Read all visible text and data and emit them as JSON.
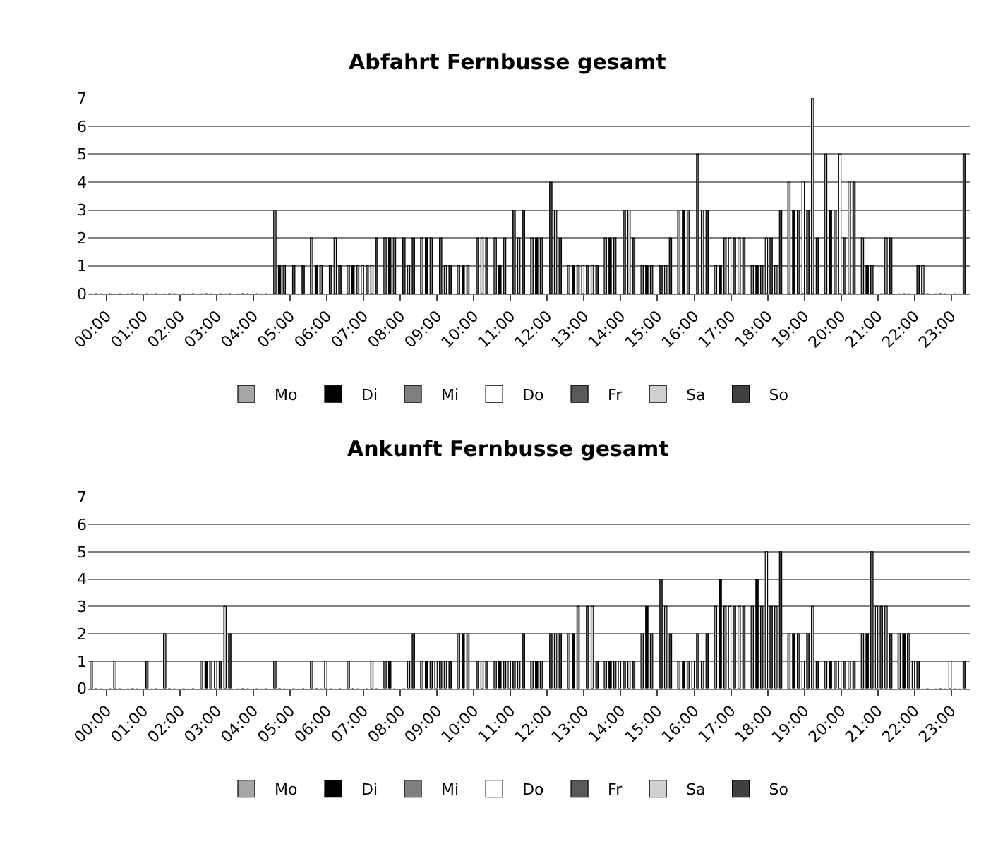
{
  "chart_data": [
    {
      "type": "bar",
      "title": "Abfahrt Fernbusse gesamt",
      "categories": [
        "00:00",
        "01:00",
        "02:00",
        "03:00",
        "04:00",
        "05:00",
        "06:00",
        "07:00",
        "08:00",
        "09:00",
        "10:00",
        "11:00",
        "12:00",
        "13:00",
        "14:00",
        "15:00",
        "16:00",
        "17:00",
        "18:00",
        "19:00",
        "20:00",
        "21:00",
        "22:00",
        "23:00"
      ],
      "series": [
        {
          "name": "Mo",
          "color": "#a6a6a6",
          "values": [
            0,
            0,
            0,
            0,
            0,
            3,
            2,
            1,
            2,
            2,
            1,
            2,
            2,
            1,
            2,
            1,
            3,
            1,
            1,
            4,
            5,
            2,
            0,
            0
          ]
        },
        {
          "name": "Di",
          "color": "#000000",
          "values": [
            0,
            0,
            0,
            0,
            0,
            1,
            1,
            1,
            2,
            2,
            1,
            1,
            2,
            1,
            2,
            1,
            3,
            1,
            1,
            3,
            3,
            1,
            0,
            0
          ]
        },
        {
          "name": "Mi",
          "color": "#7f7f7f",
          "values": [
            0,
            0,
            0,
            0,
            0,
            1,
            1,
            1,
            2,
            2,
            1,
            2,
            2,
            1,
            2,
            1,
            3,
            2,
            1,
            3,
            3,
            1,
            0,
            0
          ]
        },
        {
          "name": "Do",
          "color": "#ffffff",
          "values": [
            0,
            0,
            0,
            0,
            0,
            0,
            0,
            1,
            0,
            0,
            0,
            0,
            0,
            1,
            0,
            0,
            0,
            2,
            2,
            4,
            5,
            0,
            0,
            0
          ]
        },
        {
          "name": "Fr",
          "color": "#595959",
          "values": [
            0,
            0,
            0,
            0,
            0,
            1,
            1,
            1,
            2,
            2,
            2,
            3,
            4,
            1,
            3,
            1,
            5,
            2,
            2,
            3,
            2,
            0,
            1,
            0
          ]
        },
        {
          "name": "Sa",
          "color": "#d0d0d0",
          "values": [
            0,
            0,
            0,
            0,
            0,
            0,
            2,
            1,
            1,
            1,
            2,
            2,
            3,
            1,
            3,
            1,
            3,
            2,
            1,
            7,
            4,
            2,
            1,
            0
          ]
        },
        {
          "name": "So",
          "color": "#404040",
          "values": [
            0,
            0,
            0,
            0,
            0,
            1,
            1,
            2,
            2,
            1,
            2,
            3,
            2,
            1,
            2,
            2,
            3,
            2,
            3,
            2,
            4,
            2,
            0,
            5
          ]
        }
      ],
      "ylim": [
        0,
        7
      ],
      "yticks": [
        0,
        1,
        2,
        3,
        4,
        5,
        6,
        7
      ],
      "grid": "y",
      "legend": "bottom"
    },
    {
      "type": "bar",
      "title": "Ankunft Fernbusse gesamt",
      "categories": [
        "00:00",
        "01:00",
        "02:00",
        "03:00",
        "04:00",
        "05:00",
        "06:00",
        "07:00",
        "08:00",
        "09:00",
        "10:00",
        "11:00",
        "12:00",
        "13:00",
        "14:00",
        "15:00",
        "16:00",
        "17:00",
        "18:00",
        "19:00",
        "20:00",
        "21:00",
        "22:00",
        "23:00"
      ],
      "series": [
        {
          "name": "Mo",
          "color": "#a6a6a6",
          "values": [
            1,
            0,
            2,
            1,
            0,
            1,
            1,
            1,
            1,
            1,
            2,
            1,
            1,
            2,
            1,
            2,
            1,
            3,
            3,
            2,
            1,
            2,
            2,
            0
          ]
        },
        {
          "name": "Di",
          "color": "#000000",
          "values": [
            0,
            0,
            0,
            1,
            0,
            0,
            0,
            0,
            1,
            1,
            2,
            1,
            1,
            2,
            1,
            3,
            1,
            4,
            4,
            2,
            1,
            2,
            2,
            0
          ]
        },
        {
          "name": "Mi",
          "color": "#7f7f7f",
          "values": [
            0,
            0,
            0,
            1,
            0,
            0,
            0,
            0,
            0,
            1,
            2,
            1,
            1,
            3,
            1,
            2,
            1,
            3,
            3,
            2,
            1,
            5,
            2,
            0
          ]
        },
        {
          "name": "Do",
          "color": "#ffffff",
          "values": [
            0,
            0,
            0,
            1,
            0,
            0,
            1,
            0,
            0,
            1,
            0,
            1,
            0,
            0,
            1,
            0,
            1,
            3,
            5,
            1,
            1,
            3,
            1,
            1
          ]
        },
        {
          "name": "Fr",
          "color": "#595959",
          "values": [
            0,
            1,
            0,
            1,
            0,
            0,
            0,
            0,
            0,
            1,
            1,
            1,
            2,
            3,
            1,
            4,
            2,
            3,
            3,
            2,
            1,
            3,
            1,
            0
          ]
        },
        {
          "name": "Sa",
          "color": "#d0d0d0",
          "values": [
            1,
            0,
            0,
            3,
            0,
            0,
            0,
            1,
            1,
            1,
            1,
            1,
            2,
            3,
            1,
            3,
            1,
            3,
            3,
            3,
            1,
            3,
            0,
            0
          ]
        },
        {
          "name": "So",
          "color": "#404040",
          "values": [
            0,
            0,
            0,
            2,
            0,
            0,
            0,
            0,
            2,
            1,
            1,
            2,
            2,
            1,
            1,
            2,
            2,
            3,
            5,
            1,
            1,
            2,
            0,
            1
          ]
        }
      ],
      "ylim": [
        0,
        7
      ],
      "yticks": [
        0,
        1,
        2,
        3,
        4,
        5,
        6,
        7
      ],
      "grid": "y",
      "legend": "bottom"
    }
  ]
}
